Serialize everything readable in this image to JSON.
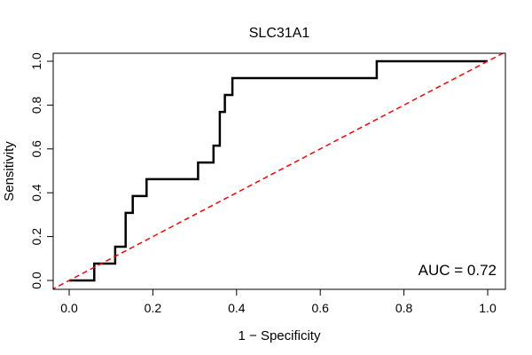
{
  "chart_data": {
    "type": "line",
    "title": "SLC31A1",
    "xlabel": "1 − Specificity",
    "ylabel": "Sensitivity",
    "xlim": [
      0,
      1
    ],
    "ylim": [
      0,
      1
    ],
    "x_ticks": [
      0.0,
      0.2,
      0.4,
      0.6,
      0.8,
      1.0
    ],
    "x_tick_labels": [
      "0.0",
      "0.2",
      "0.4",
      "0.6",
      "0.8",
      "1.0"
    ],
    "y_ticks": [
      0.0,
      0.2,
      0.4,
      0.6,
      0.8,
      1.0
    ],
    "y_tick_labels": [
      "0.0",
      "0.2",
      "0.4",
      "0.6",
      "0.8",
      "1.0"
    ],
    "grid": false,
    "series": [
      {
        "name": "ROC curve",
        "color": "#000000",
        "style": "solid",
        "points": [
          [
            0.0,
            0.0
          ],
          [
            0.06,
            0.0
          ],
          [
            0.06,
            0.077
          ],
          [
            0.11,
            0.077
          ],
          [
            0.11,
            0.154
          ],
          [
            0.135,
            0.154
          ],
          [
            0.135,
            0.308
          ],
          [
            0.152,
            0.308
          ],
          [
            0.152,
            0.385
          ],
          [
            0.185,
            0.385
          ],
          [
            0.185,
            0.462
          ],
          [
            0.308,
            0.462
          ],
          [
            0.308,
            0.538
          ],
          [
            0.345,
            0.538
          ],
          [
            0.345,
            0.615
          ],
          [
            0.36,
            0.615
          ],
          [
            0.36,
            0.769
          ],
          [
            0.372,
            0.769
          ],
          [
            0.372,
            0.846
          ],
          [
            0.39,
            0.846
          ],
          [
            0.39,
            0.923
          ],
          [
            0.735,
            0.923
          ],
          [
            0.735,
            1.0
          ],
          [
            1.0,
            1.0
          ]
        ]
      },
      {
        "name": "Reference line",
        "color": "#ff0000",
        "style": "dashed",
        "points": [
          [
            -0.1,
            -0.1
          ],
          [
            1.1,
            1.1
          ]
        ]
      }
    ],
    "annotation": "AUC = 0.72",
    "annotation_position": "bottom-right"
  }
}
